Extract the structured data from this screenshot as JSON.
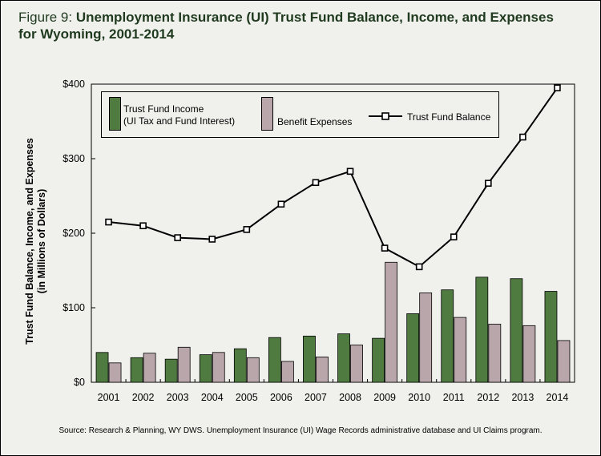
{
  "title": {
    "prefix": "Figure 9:",
    "line1": "Unemployment Insurance (UI) Trust Fund Balance, Income, and Expenses",
    "line2": "for Wyoming, 2001-2014"
  },
  "source": "Source:  Research & Planning, WY DWS. Unemployment Insurance (UI) Wage Records administrative database and UI Claims program.",
  "colors": {
    "background": "#f0f1ed",
    "income": "#4f7b41",
    "expenses": "#b9a6aa",
    "balance": "#000000",
    "title": "#1f3a1e"
  },
  "legend": {
    "income_line1": "Trust Fund Income",
    "income_line2": "(UI Tax and Fund Interest)",
    "expenses": "Benefit Expenses",
    "balance": "Trust Fund Balance"
  },
  "chart_data": {
    "type": "bar",
    "ylabel_line1": "Trust Fund Balance, Income, and Expenses",
    "ylabel_line2": "(in Millions of Dollars)",
    "xlabel": "",
    "ylim": [
      0,
      400
    ],
    "yticks": [
      0,
      100,
      200,
      300,
      400
    ],
    "ytick_labels": [
      "$0",
      "$100",
      "$200",
      "$300",
      "$400"
    ],
    "grid": false,
    "legend_position": "top",
    "categories": [
      "2001",
      "2002",
      "2003",
      "2004",
      "2005",
      "2006",
      "2007",
      "2008",
      "2009",
      "2010",
      "2011",
      "2012",
      "2013",
      "2014"
    ],
    "series": [
      {
        "name": "Trust Fund Income (UI Tax and Fund Interest)",
        "type": "bar",
        "values": [
          40,
          33,
          31,
          37,
          45,
          60,
          62,
          65,
          59,
          92,
          124,
          141,
          139,
          122
        ]
      },
      {
        "name": "Benefit Expenses",
        "type": "bar",
        "values": [
          26,
          39,
          47,
          40,
          33,
          28,
          34,
          50,
          161,
          120,
          87,
          78,
          76,
          56
        ]
      },
      {
        "name": "Trust Fund Balance",
        "type": "line",
        "values": [
          215,
          210,
          194,
          192,
          205,
          239,
          268,
          283,
          180,
          155,
          195,
          267,
          329,
          395
        ]
      }
    ]
  }
}
